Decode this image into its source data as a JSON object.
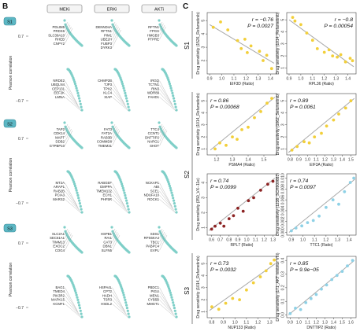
{
  "panel_b": {
    "letter": "B",
    "columns": [
      "MEKi",
      "ERKi",
      "AKTi"
    ],
    "y_axis_label": "Pearson correlation",
    "blocks": [
      {
        "row": "S1",
        "columns": [
          {
            "top_genes": [
              "PDLIM5",
              "PRDX6",
              "SLC39A10",
              "RHEB",
              "CNPY2"
            ],
            "bottom_genes": [
              "NRDE2",
              "UBQLN4",
              "CEP131",
              "EEF2K",
              "LMNA"
            ]
          },
          {
            "top_genes": [
              "DENND4A",
              "RFTN1",
              "PIM1",
              "UBE2H",
              "FUBP3",
              "DYRK3"
            ],
            "bottom_genes": [
              "CHMP2B",
              "TJP3",
              "TPX2",
              "KLC4",
              "XIAP"
            ]
          },
          {
            "top_genes": [
              "RFTN1",
              "FPGS",
              "HMGB3",
              "PTPRE"
            ],
            "bottom_genes": [
              "IRGQ",
              "TCTN1",
              "RIN3",
              "WDR89",
              "FAHD1"
            ]
          }
        ]
      },
      {
        "row": "S2",
        "columns": [
          {
            "top_genes": [
              "TAP2",
              "CDK14",
              "MAPT",
              "DDB2",
              "GTPBP10"
            ],
            "bottom_genes": [
              "MT2A",
              "ARAP1",
              "RAB2B",
              "PCIA3",
              "MARS2"
            ]
          },
          {
            "top_genes": [
              "FAT3",
              "FAT2A",
              "RAB3B",
              "COMMD8",
              "TMEM31"
            ],
            "bottom_genes": [
              "RABGEF",
              "GMPPA",
              "TMEM132",
              "ECH1",
              "PHF5R"
            ]
          },
          {
            "top_genes": [
              "TTC4",
              "CCNT1",
              "DNTTIP2",
              "NARG1",
              "SHOT"
            ],
            "bottom_genes": [
              "NCKAP1",
              "ABI",
              "SCEL",
              "NDUFA10",
              "ROCK1"
            ]
          }
        ]
      },
      {
        "row": "S3",
        "columns": [
          {
            "top_genes": [
              "SLC2A1",
              "SEC61A1",
              "TIMM13",
              "EXOC2",
              "COG4"
            ],
            "bottom_genes": [
              "BAG1",
              "TMED4",
              "PIK3R2",
              "MAPK15",
              "KCMF1"
            ]
          },
          {
            "top_genes": [
              "HSPB1",
              "RAI1",
              "CAT3",
              "DBN1",
              "SLFN5"
            ],
            "bottom_genes": [
              "HSPA4L",
              "CPT2",
              "HADH",
              "TSR3",
              "HSDL2"
            ]
          },
          {
            "top_genes": [
              "SDS1",
              "RPS6KA4",
              "TBC1",
              "PABPC4",
              "EVPL"
            ],
            "bottom_genes": [
              "PBDC1",
              "PIGU",
              "MEN1",
              "CYB5B",
              "MMGT1"
            ]
          }
        ]
      }
    ]
  },
  "panel_c": {
    "letter": "C",
    "colors": {
      "yellow": "#f2cf3a",
      "darkred": "#8c2323",
      "lightblue": "#8ed1e6",
      "trend": "#a9a9a9"
    },
    "row_labels": [
      "S1",
      "S2",
      "S3"
    ],
    "plots": [
      {
        "row": 1,
        "col": 1,
        "ylabel": "Drug sensitivity (1526_Refametinib)",
        "xlabel": "EIF3D (Ratio)",
        "r": "r = −0.76",
        "p": "P = 0.0027",
        "stat_pos": "top-right",
        "color": "yellow",
        "xticks": [
          "0.9",
          "1.0",
          "1.1",
          "1.2",
          "1.3",
          "1.4"
        ],
        "yticks": [
          "2",
          "3",
          "4",
          "5"
        ],
        "xlim": [
          0.88,
          1.45
        ],
        "ylim": [
          1.0,
          5.6
        ],
        "points": [
          [
            0.93,
            4.5
          ],
          [
            0.99,
            4.9
          ],
          [
            1.05,
            4.3
          ],
          [
            1.13,
            3.5
          ],
          [
            1.16,
            2.9
          ],
          [
            1.19,
            3.6
          ],
          [
            1.21,
            2.6
          ],
          [
            1.24,
            3.1
          ],
          [
            1.31,
            2.7
          ],
          [
            1.34,
            2.0
          ],
          [
            1.37,
            2.4
          ],
          [
            1.41,
            1.4
          ]
        ],
        "trend": [
          [
            0.9,
            4.7
          ],
          [
            1.43,
            1.8
          ]
        ]
      },
      {
        "row": 1,
        "col": 2,
        "ylabel": "Drug sensitivity (1014_Refametinib)",
        "xlabel": "RPL36 (Ratio)",
        "r": "r = −0.8",
        "p": "P = 0.00054",
        "stat_pos": "top-right",
        "color": "yellow",
        "xticks": [
          "0.9",
          "1.0",
          "1.1",
          "1.2",
          "1.3",
          "1.4"
        ],
        "yticks": [
          "1",
          "2",
          "3",
          "4",
          "5"
        ],
        "xlim": [
          0.88,
          1.47
        ],
        "ylim": [
          0.5,
          5.6
        ],
        "points": [
          [
            0.93,
            5.2
          ],
          [
            0.95,
            4.9
          ],
          [
            1.0,
            4.6
          ],
          [
            1.05,
            3.9
          ],
          [
            1.1,
            3.3
          ],
          [
            1.14,
            2.6
          ],
          [
            1.2,
            2.3
          ],
          [
            1.24,
            2.5
          ],
          [
            1.27,
            2.0
          ],
          [
            1.31,
            1.9
          ],
          [
            1.34,
            2.1
          ],
          [
            1.38,
            1.5
          ],
          [
            1.42,
            1.8
          ],
          [
            1.44,
            1.6
          ]
        ],
        "trend": [
          [
            0.9,
            5.0
          ],
          [
            1.45,
            1.1
          ]
        ]
      },
      {
        "row": 2,
        "col": 1,
        "ylabel": "Drug sensitivity (1014_Refametinib)",
        "xlabel": "PSMA4 (Ratio)",
        "r": "r = 0.86",
        "p": "P = 0.00068",
        "stat_pos": "top-left",
        "color": "yellow",
        "xticks": [
          "1.2",
          "1.3",
          "1.4",
          "1.5"
        ],
        "yticks": [
          "1",
          "2",
          "3",
          "4",
          "5"
        ],
        "xlim": [
          1.14,
          1.58
        ],
        "ylim": [
          0.5,
          5.6
        ],
        "points": [
          [
            1.19,
            1.0
          ],
          [
            1.22,
            1.5
          ],
          [
            1.26,
            1.3
          ],
          [
            1.3,
            2.0
          ],
          [
            1.33,
            1.8
          ],
          [
            1.36,
            2.6
          ],
          [
            1.4,
            2.8
          ],
          [
            1.44,
            3.6
          ],
          [
            1.48,
            4.1
          ],
          [
            1.52,
            4.8
          ],
          [
            1.55,
            5.2
          ]
        ],
        "trend": [
          [
            1.16,
            0.9
          ],
          [
            1.57,
            5.3
          ]
        ]
      },
      {
        "row": 2,
        "col": 2,
        "ylabel": "Drug sensitivity (1062_Selumetinib)",
        "xlabel": "EIF3A (Ratio)",
        "r": "r = 0.89",
        "p": "P = 0.0061",
        "stat_pos": "top-left",
        "color": "yellow",
        "xticks": [
          "0.8",
          "0.9",
          "1.0",
          "1.1",
          "1.2",
          "1.3",
          "1.4",
          "1.5"
        ],
        "yticks": [
          "1",
          "2",
          "3",
          "4",
          "5"
        ],
        "xlim": [
          0.76,
          1.56
        ],
        "ylim": [
          0.5,
          5.6
        ],
        "points": [
          [
            0.82,
            0.9
          ],
          [
            0.88,
            1.2
          ],
          [
            0.96,
            1.6
          ],
          [
            1.02,
            1.5
          ],
          [
            1.08,
            2.0
          ],
          [
            1.16,
            2.3
          ],
          [
            1.22,
            2.9
          ],
          [
            1.3,
            3.4
          ],
          [
            1.36,
            3.9
          ],
          [
            1.44,
            4.4
          ],
          [
            1.5,
            5.0
          ]
        ],
        "trend": [
          [
            0.78,
            0.7
          ],
          [
            1.54,
            5.2
          ]
        ]
      },
      {
        "row": 3,
        "col": 1,
        "ylabel": "Drug sensitivity (350_VX−11e)",
        "xlabel": "RPL7 (Ratio)",
        "r": "r = 0.74",
        "p": "P = 0.0099",
        "stat_pos": "top-left",
        "color": "darkred",
        "xticks": [
          "0.6",
          "0.7",
          "0.8",
          "0.9",
          "1.0",
          "1.1",
          "1.2",
          "1.3"
        ],
        "yticks": [
          "1",
          "2",
          "3",
          "4"
        ],
        "xlim": [
          0.55,
          1.34
        ],
        "ylim": [
          0.5,
          4.6
        ],
        "points": [
          [
            0.6,
            0.9
          ],
          [
            0.64,
            1.1
          ],
          [
            0.7,
            1.3
          ],
          [
            0.74,
            1.1
          ],
          [
            0.8,
            1.6
          ],
          [
            0.85,
            1.8
          ],
          [
            0.9,
            2.3
          ],
          [
            0.96,
            2.1
          ],
          [
            1.02,
            2.8
          ],
          [
            1.08,
            3.0
          ],
          [
            1.16,
            3.5
          ],
          [
            1.24,
            3.9
          ],
          [
            1.3,
            4.1
          ]
        ],
        "trend": [
          [
            0.57,
            0.8
          ],
          [
            1.32,
            4.3
          ]
        ]
      },
      {
        "row": 3,
        "col": 2,
        "ylabel": "Drug sensitivity (1238_SCH900683)",
        "xlabel": "TTC1 (Ratio)",
        "r": "r = 0.74",
        "p": "P = 0.0097",
        "stat_pos": "top-left",
        "color": "lightblue",
        "xticks": [
          "0.9",
          "1.0",
          "1.1",
          "1.2",
          "1.3",
          "1.4"
        ],
        "yticks": [
          "0.000",
          "0.002",
          "0.004",
          "0.006",
          "0.008",
          "0.010"
        ],
        "xlim": [
          0.86,
          1.46
        ],
        "ylim": [
          -0.0005,
          0.0108
        ],
        "points": [
          [
            0.9,
            0.0003
          ],
          [
            0.94,
            0.0008
          ],
          [
            0.99,
            0.0012
          ],
          [
            1.04,
            0.0018
          ],
          [
            1.09,
            0.0022
          ],
          [
            1.14,
            0.003
          ],
          [
            1.2,
            0.0046
          ],
          [
            1.26,
            0.006
          ],
          [
            1.31,
            0.0052
          ],
          [
            1.36,
            0.0075
          ],
          [
            1.41,
            0.0092
          ],
          [
            1.44,
            0.01
          ]
        ],
        "trend": [
          [
            0.88,
            0.0
          ],
          [
            1.45,
            0.0098
          ]
        ]
      },
      {
        "row": 4,
        "col": 1,
        "ylabel": "Drug sensitivity (1014_Refametinib)",
        "xlabel": "NUP133 (Ratio)",
        "r": "r = 0.73",
        "p": "P = 0.0032",
        "stat_pos": "top-left",
        "color": "yellow",
        "xticks": [
          "0.8",
          "0.9",
          "1.0",
          "1.1",
          "1.2",
          "1.3"
        ],
        "yticks": [
          "1",
          "2",
          "3",
          "4",
          "5"
        ],
        "xlim": [
          0.76,
          1.36
        ],
        "ylim": [
          0.5,
          5.6
        ],
        "points": [
          [
            0.8,
            1.4
          ],
          [
            0.86,
            1.2
          ],
          [
            0.92,
            1.7
          ],
          [
            0.98,
            2.1
          ],
          [
            1.04,
            2.0
          ],
          [
            1.1,
            2.8
          ],
          [
            1.16,
            3.4
          ],
          [
            1.22,
            3.9
          ],
          [
            1.27,
            4.4
          ],
          [
            1.31,
            5.0
          ],
          [
            1.34,
            5.3
          ]
        ],
        "trend": [
          [
            0.78,
            1.1
          ],
          [
            1.35,
            5.0
          ]
        ]
      },
      {
        "row": 4,
        "col": 2,
        "ylabel": "Drug sensitivity (171_AKT inhibitor VIII)",
        "xlabel": "DNTTIP2 (Ratio)",
        "r": "r = 0.85",
        "p": "P = 9.9e−05",
        "stat_pos": "top-left",
        "color": "lightblue",
        "xticks": [
          "0.9",
          "1.0",
          "1.1",
          "1.2",
          "1.3",
          "1.4",
          "1.5",
          "1.6"
        ],
        "yticks": [
          "0.0",
          "0.1",
          "0.2",
          "0.3",
          "0.4"
        ],
        "xlim": [
          0.86,
          1.66
        ],
        "ylim": [
          -0.02,
          0.43
        ],
        "points": [
          [
            0.9,
            0.01
          ],
          [
            0.96,
            0.05
          ],
          [
            1.02,
            0.04
          ],
          [
            1.08,
            0.09
          ],
          [
            1.14,
            0.12
          ],
          [
            1.2,
            0.15
          ],
          [
            1.26,
            0.19
          ],
          [
            1.32,
            0.22
          ],
          [
            1.38,
            0.26
          ],
          [
            1.44,
            0.29
          ],
          [
            1.5,
            0.32
          ],
          [
            1.56,
            0.36
          ],
          [
            1.62,
            0.4
          ]
        ],
        "trend": [
          [
            0.88,
            0.0
          ],
          [
            1.64,
            0.4
          ]
        ]
      }
    ]
  },
  "chart_data": {
    "type": "scatter",
    "subplots": [
      {
        "xlabel": "EIF3D (Ratio)",
        "ylabel": "Drug sensitivity (1526_Refametinib)",
        "r": -0.76,
        "p": 0.0027
      },
      {
        "xlabel": "RPL36 (Ratio)",
        "ylabel": "Drug sensitivity (1014_Refametinib)",
        "r": -0.8,
        "p": 0.00054
      },
      {
        "xlabel": "PSMA4 (Ratio)",
        "ylabel": "Drug sensitivity (1014_Refametinib)",
        "r": 0.86,
        "p": 0.00068
      },
      {
        "xlabel": "EIF3A (Ratio)",
        "ylabel": "Drug sensitivity (1062_Selumetinib)",
        "r": 0.89,
        "p": 0.0061
      },
      {
        "xlabel": "RPL7 (Ratio)",
        "ylabel": "Drug sensitivity (350_VX−11e)",
        "r": 0.74,
        "p": 0.0099
      },
      {
        "xlabel": "TTC1 (Ratio)",
        "ylabel": "Drug sensitivity (1238_SCH900683)",
        "r": 0.74,
        "p": 0.0097
      },
      {
        "xlabel": "NUP133 (Ratio)",
        "ylabel": "Drug sensitivity (1014_Refametinib)",
        "r": 0.73,
        "p": 0.0032
      },
      {
        "xlabel": "DNTTIP2 (Ratio)",
        "ylabel": "Drug sensitivity (171_AKT inhibitor VIII)",
        "r": 0.85,
        "p": 9.9e-05
      }
    ]
  }
}
